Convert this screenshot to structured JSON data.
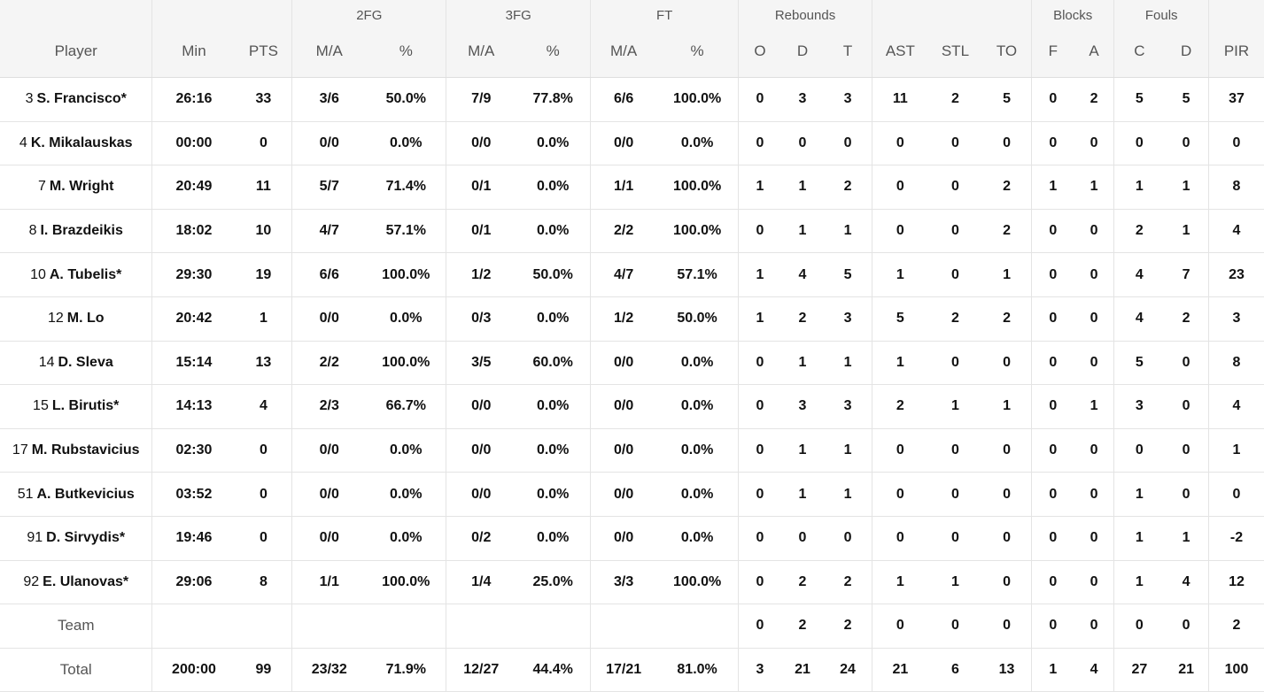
{
  "groups": {
    "fg2": "2FG",
    "fg3": "3FG",
    "ft": "FT",
    "rebounds": "Rebounds",
    "blocks": "Blocks",
    "fouls": "Fouls"
  },
  "columns": {
    "player": "Player",
    "min": "Min",
    "pts": "PTS",
    "fg2_ma": "M/A",
    "fg2_pct": "%",
    "fg3_ma": "M/A",
    "fg3_pct": "%",
    "ft_ma": "M/A",
    "ft_pct": "%",
    "reb_o": "O",
    "reb_d": "D",
    "reb_t": "T",
    "ast": "AST",
    "stl": "STL",
    "to": "TO",
    "blk_f": "F",
    "blk_a": "A",
    "foul_c": "C",
    "foul_d": "D",
    "pir": "PIR"
  },
  "players": [
    {
      "num": "3",
      "name": "S. Francisco*",
      "min": "26:16",
      "pts": "33",
      "fg2_ma": "3/6",
      "fg2_pct": "50.0%",
      "fg3_ma": "7/9",
      "fg3_pct": "77.8%",
      "ft_ma": "6/6",
      "ft_pct": "100.0%",
      "reb_o": "0",
      "reb_d": "3",
      "reb_t": "3",
      "ast": "11",
      "stl": "2",
      "to": "5",
      "blk_f": "0",
      "blk_a": "2",
      "foul_c": "5",
      "foul_d": "5",
      "pir": "37"
    },
    {
      "num": "4",
      "name": "K. Mikalauskas",
      "min": "00:00",
      "pts": "0",
      "fg2_ma": "0/0",
      "fg2_pct": "0.0%",
      "fg3_ma": "0/0",
      "fg3_pct": "0.0%",
      "ft_ma": "0/0",
      "ft_pct": "0.0%",
      "reb_o": "0",
      "reb_d": "0",
      "reb_t": "0",
      "ast": "0",
      "stl": "0",
      "to": "0",
      "blk_f": "0",
      "blk_a": "0",
      "foul_c": "0",
      "foul_d": "0",
      "pir": "0"
    },
    {
      "num": "7",
      "name": "M. Wright",
      "min": "20:49",
      "pts": "11",
      "fg2_ma": "5/7",
      "fg2_pct": "71.4%",
      "fg3_ma": "0/1",
      "fg3_pct": "0.0%",
      "ft_ma": "1/1",
      "ft_pct": "100.0%",
      "reb_o": "1",
      "reb_d": "1",
      "reb_t": "2",
      "ast": "0",
      "stl": "0",
      "to": "2",
      "blk_f": "1",
      "blk_a": "1",
      "foul_c": "1",
      "foul_d": "1",
      "pir": "8"
    },
    {
      "num": "8",
      "name": "I. Brazdeikis",
      "min": "18:02",
      "pts": "10",
      "fg2_ma": "4/7",
      "fg2_pct": "57.1%",
      "fg3_ma": "0/1",
      "fg3_pct": "0.0%",
      "ft_ma": "2/2",
      "ft_pct": "100.0%",
      "reb_o": "0",
      "reb_d": "1",
      "reb_t": "1",
      "ast": "0",
      "stl": "0",
      "to": "2",
      "blk_f": "0",
      "blk_a": "0",
      "foul_c": "2",
      "foul_d": "1",
      "pir": "4"
    },
    {
      "num": "10",
      "name": "A. Tubelis*",
      "min": "29:30",
      "pts": "19",
      "fg2_ma": "6/6",
      "fg2_pct": "100.0%",
      "fg3_ma": "1/2",
      "fg3_pct": "50.0%",
      "ft_ma": "4/7",
      "ft_pct": "57.1%",
      "reb_o": "1",
      "reb_d": "4",
      "reb_t": "5",
      "ast": "1",
      "stl": "0",
      "to": "1",
      "blk_f": "0",
      "blk_a": "0",
      "foul_c": "4",
      "foul_d": "7",
      "pir": "23"
    },
    {
      "num": "12",
      "name": "M. Lo",
      "min": "20:42",
      "pts": "1",
      "fg2_ma": "0/0",
      "fg2_pct": "0.0%",
      "fg3_ma": "0/3",
      "fg3_pct": "0.0%",
      "ft_ma": "1/2",
      "ft_pct": "50.0%",
      "reb_o": "1",
      "reb_d": "2",
      "reb_t": "3",
      "ast": "5",
      "stl": "2",
      "to": "2",
      "blk_f": "0",
      "blk_a": "0",
      "foul_c": "4",
      "foul_d": "2",
      "pir": "3"
    },
    {
      "num": "14",
      "name": "D. Sleva",
      "min": "15:14",
      "pts": "13",
      "fg2_ma": "2/2",
      "fg2_pct": "100.0%",
      "fg3_ma": "3/5",
      "fg3_pct": "60.0%",
      "ft_ma": "0/0",
      "ft_pct": "0.0%",
      "reb_o": "0",
      "reb_d": "1",
      "reb_t": "1",
      "ast": "1",
      "stl": "0",
      "to": "0",
      "blk_f": "0",
      "blk_a": "0",
      "foul_c": "5",
      "foul_d": "0",
      "pir": "8"
    },
    {
      "num": "15",
      "name": "L. Birutis*",
      "min": "14:13",
      "pts": "4",
      "fg2_ma": "2/3",
      "fg2_pct": "66.7%",
      "fg3_ma": "0/0",
      "fg3_pct": "0.0%",
      "ft_ma": "0/0",
      "ft_pct": "0.0%",
      "reb_o": "0",
      "reb_d": "3",
      "reb_t": "3",
      "ast": "2",
      "stl": "1",
      "to": "1",
      "blk_f": "0",
      "blk_a": "1",
      "foul_c": "3",
      "foul_d": "0",
      "pir": "4"
    },
    {
      "num": "17",
      "name": "M. Rubstavicius",
      "min": "02:30",
      "pts": "0",
      "fg2_ma": "0/0",
      "fg2_pct": "0.0%",
      "fg3_ma": "0/0",
      "fg3_pct": "0.0%",
      "ft_ma": "0/0",
      "ft_pct": "0.0%",
      "reb_o": "0",
      "reb_d": "1",
      "reb_t": "1",
      "ast": "0",
      "stl": "0",
      "to": "0",
      "blk_f": "0",
      "blk_a": "0",
      "foul_c": "0",
      "foul_d": "0",
      "pir": "1"
    },
    {
      "num": "51",
      "name": "A. Butkevicius",
      "min": "03:52",
      "pts": "0",
      "fg2_ma": "0/0",
      "fg2_pct": "0.0%",
      "fg3_ma": "0/0",
      "fg3_pct": "0.0%",
      "ft_ma": "0/0",
      "ft_pct": "0.0%",
      "reb_o": "0",
      "reb_d": "1",
      "reb_t": "1",
      "ast": "0",
      "stl": "0",
      "to": "0",
      "blk_f": "0",
      "blk_a": "0",
      "foul_c": "1",
      "foul_d": "0",
      "pir": "0"
    },
    {
      "num": "91",
      "name": "D. Sirvydis*",
      "min": "19:46",
      "pts": "0",
      "fg2_ma": "0/0",
      "fg2_pct": "0.0%",
      "fg3_ma": "0/2",
      "fg3_pct": "0.0%",
      "ft_ma": "0/0",
      "ft_pct": "0.0%",
      "reb_o": "0",
      "reb_d": "0",
      "reb_t": "0",
      "ast": "0",
      "stl": "0",
      "to": "0",
      "blk_f": "0",
      "blk_a": "0",
      "foul_c": "1",
      "foul_d": "1",
      "pir": "-2"
    },
    {
      "num": "92",
      "name": "E. Ulanovas*",
      "min": "29:06",
      "pts": "8",
      "fg2_ma": "1/1",
      "fg2_pct": "100.0%",
      "fg3_ma": "1/4",
      "fg3_pct": "25.0%",
      "ft_ma": "3/3",
      "ft_pct": "100.0%",
      "reb_o": "0",
      "reb_d": "2",
      "reb_t": "2",
      "ast": "1",
      "stl": "1",
      "to": "0",
      "blk_f": "0",
      "blk_a": "0",
      "foul_c": "1",
      "foul_d": "4",
      "pir": "12"
    }
  ],
  "team": {
    "label": "Team",
    "reb_o": "0",
    "reb_d": "2",
    "reb_t": "2",
    "ast": "0",
    "stl": "0",
    "to": "0",
    "blk_f": "0",
    "blk_a": "0",
    "foul_c": "0",
    "foul_d": "0",
    "pir": "2"
  },
  "total": {
    "label": "Total",
    "min": "200:00",
    "pts": "99",
    "fg2_ma": "23/32",
    "fg2_pct": "71.9%",
    "fg3_ma": "12/27",
    "fg3_pct": "44.4%",
    "ft_ma": "17/21",
    "ft_pct": "81.0%",
    "reb_o": "3",
    "reb_d": "21",
    "reb_t": "24",
    "ast": "21",
    "stl": "6",
    "to": "13",
    "blk_f": "1",
    "blk_a": "4",
    "foul_c": "27",
    "foul_d": "21",
    "pir": "100"
  }
}
